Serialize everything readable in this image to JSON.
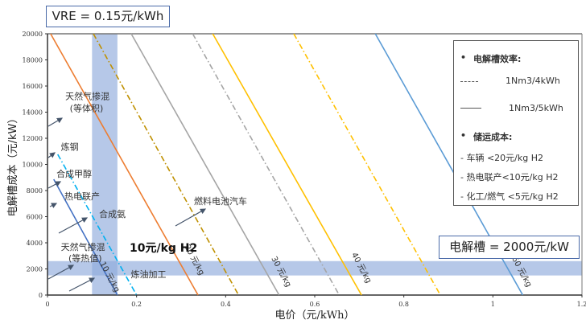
{
  "chart_data": {
    "type": "line",
    "xlabel": "电价（元/kWh）",
    "ylabel": "电解槽成本（元/kW）",
    "xlim": [
      0,
      1.2
    ],
    "ylim": [
      0,
      20000
    ],
    "xticks": [
      "0",
      "0.2",
      "0.4",
      "0.6",
      "0.8",
      "1",
      "1.2"
    ],
    "yticks": [
      "0",
      "2000",
      "4000",
      "6000",
      "8000",
      "10000",
      "12000",
      "14000",
      "16000",
      "18000",
      "20000"
    ],
    "grid": false,
    "series": [
      {
        "id": "10-solid",
        "style": "solid",
        "color": "#4472c4",
        "x": [
          0.014,
          0.157
        ],
        "y": [
          8860,
          0
        ]
      },
      {
        "id": "10-dashdot",
        "style": "dashdot",
        "color": "#00b0f0",
        "x": [
          0.023,
          0.2
        ],
        "y": [
          10770,
          0
        ]
      },
      {
        "id": "20-solid",
        "style": "solid",
        "color": "#ed7d31",
        "x": [
          0.007,
          0.338
        ],
        "y": [
          20000,
          0
        ]
      },
      {
        "id": "20-dashdot",
        "style": "dashdot",
        "color": "#bf9000",
        "x": [
          0.103,
          0.429
        ],
        "y": [
          20000,
          0
        ]
      },
      {
        "id": "30-solid",
        "style": "solid",
        "color": "#a5a5a5",
        "x": [
          0.188,
          0.52
        ],
        "y": [
          20000,
          0
        ]
      },
      {
        "id": "30-dashdot",
        "style": "dashdot",
        "color": "#a5a5a5",
        "x": [
          0.326,
          0.655
        ],
        "y": [
          20000,
          0
        ]
      },
      {
        "id": "40-solid",
        "style": "solid",
        "color": "#ffc000",
        "x": [
          0.371,
          0.705
        ],
        "y": [
          20000,
          0
        ]
      },
      {
        "id": "40-dashdot",
        "style": "dashdot",
        "color": "#ffc000",
        "x": [
          0.553,
          0.882
        ],
        "y": [
          20000,
          0
        ]
      },
      {
        "id": "60-solid",
        "style": "solid",
        "color": "#5b9bd5",
        "x": [
          0.736,
          1.067
        ],
        "y": [
          20000,
          0
        ]
      }
    ],
    "bands": [
      {
        "axis": "x",
        "from": 0.1,
        "to": 0.157,
        "color": "#8faadc"
      },
      {
        "axis": "y",
        "from": 1500,
        "to": 2600,
        "color": "#8faadc"
      }
    ],
    "line_labels": [
      {
        "text": "10 元/kg",
        "x": 0.135,
        "y": 1300
      },
      {
        "text": "20 元/kg",
        "x": 0.325,
        "y": 2600
      },
      {
        "text": "30 元/kg",
        "x": 0.52,
        "y": 1700
      },
      {
        "text": "40 元/kg",
        "x": 0.7,
        "y": 2000
      },
      {
        "text": "60 元/kg",
        "x": 1.06,
        "y": 1700
      }
    ],
    "annotations": [
      {
        "text": "天然气掺混",
        "x": 0.04,
        "y": 15000
      },
      {
        "text": "(等体积)",
        "x": 0.05,
        "y": 14050
      },
      {
        "text": "炼钢",
        "x": 0.03,
        "y": 11100
      },
      {
        "text": "合成甲醇",
        "x": 0.02,
        "y": 9050
      },
      {
        "text": "热电联产",
        "x": 0.038,
        "y": 7330
      },
      {
        "text": "合成氨",
        "x": 0.116,
        "y": 5970
      },
      {
        "text": "天然气掺混",
        "x": 0.03,
        "y": 3450
      },
      {
        "text": "(等热值)",
        "x": 0.047,
        "y": 2600
      },
      {
        "text": "炼油加工",
        "x": 0.187,
        "y": 1350
      },
      {
        "text": "燃料电池汽车",
        "x": 0.329,
        "y": 6950
      }
    ],
    "highlight_label": "10元/kg H2",
    "vre_label": "VRE = 0.15元/kWh",
    "electrolyzer_label": "电解槽 = 2000元/kW",
    "legend": {
      "efficiency_title": "电解槽效率:",
      "efficiency_items": [
        "1Nm3/4kWh",
        "1Nm3/5kWh"
      ],
      "storage_title": "储运成本:",
      "storage_items": [
        "车辆 <20元/kg H2",
        "热电联产<10元/kg H2",
        "化工/燃气 <5元/kg H2"
      ],
      "position": "right"
    }
  }
}
